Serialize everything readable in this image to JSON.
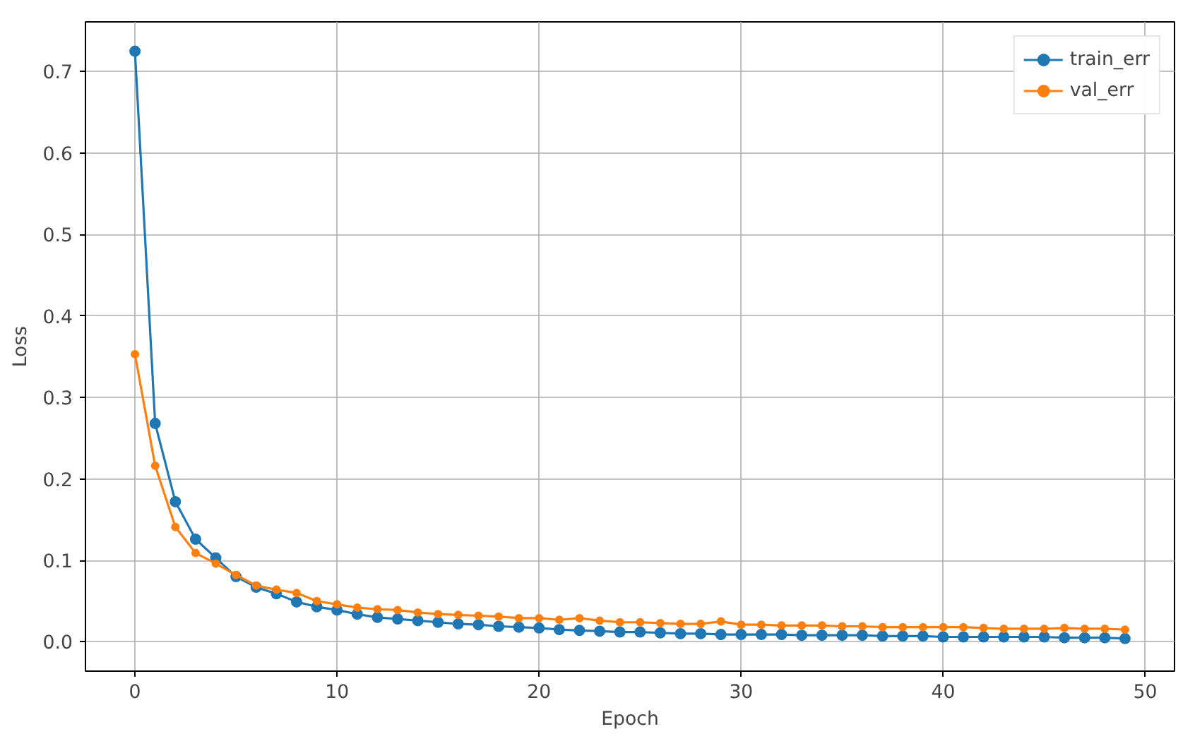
{
  "chart_data": {
    "type": "line",
    "xlabel": "Epoch",
    "ylabel": "Loss",
    "x": [
      0,
      1,
      2,
      3,
      4,
      5,
      6,
      7,
      8,
      9,
      10,
      11,
      12,
      13,
      14,
      15,
      16,
      17,
      18,
      19,
      20,
      21,
      22,
      23,
      24,
      25,
      26,
      27,
      28,
      29,
      30,
      31,
      32,
      33,
      34,
      35,
      36,
      37,
      38,
      39,
      40,
      41,
      42,
      43,
      44,
      45,
      46,
      47,
      48,
      49
    ],
    "series": [
      {
        "name": "train_err",
        "color": "#1f77b4",
        "values": [
          0.725,
          0.268,
          0.172,
          0.126,
          0.103,
          0.08,
          0.067,
          0.059,
          0.049,
          0.043,
          0.039,
          0.034,
          0.03,
          0.028,
          0.026,
          0.024,
          0.022,
          0.021,
          0.019,
          0.018,
          0.017,
          0.015,
          0.014,
          0.013,
          0.012,
          0.012,
          0.011,
          0.01,
          0.01,
          0.009,
          0.009,
          0.009,
          0.009,
          0.008,
          0.008,
          0.008,
          0.008,
          0.007,
          0.007,
          0.007,
          0.006,
          0.006,
          0.006,
          0.006,
          0.006,
          0.006,
          0.005,
          0.005,
          0.005,
          0.004
        ]
      },
      {
        "name": "val_err",
        "color": "#ff7f0e",
        "values": [
          0.353,
          0.216,
          0.141,
          0.109,
          0.096,
          0.082,
          0.069,
          0.064,
          0.06,
          0.05,
          0.046,
          0.042,
          0.04,
          0.039,
          0.036,
          0.034,
          0.033,
          0.032,
          0.031,
          0.029,
          0.029,
          0.027,
          0.029,
          0.026,
          0.024,
          0.024,
          0.023,
          0.022,
          0.022,
          0.025,
          0.021,
          0.021,
          0.02,
          0.02,
          0.02,
          0.019,
          0.019,
          0.018,
          0.018,
          0.018,
          0.018,
          0.018,
          0.017,
          0.016,
          0.016,
          0.016,
          0.017,
          0.016,
          0.016,
          0.015
        ]
      }
    ],
    "xlim": [
      -2.45,
      51.45
    ],
    "ylim": [
      -0.036,
      0.761
    ],
    "xticks": [
      0,
      10,
      20,
      30,
      40,
      50
    ],
    "yticks": [
      {
        "value": 0,
        "label": "0.0"
      },
      {
        "value": 0.1,
        "label": "0.1"
      },
      {
        "value": 0.2,
        "label": "0.2"
      },
      {
        "value": 0.3,
        "label": "0.3"
      },
      {
        "value": 0.4,
        "label": "0.4"
      },
      {
        "value": 0.5,
        "label": "0.5"
      },
      {
        "value": 0.6,
        "label": "0.6"
      },
      {
        "value": 0.7,
        "label": "0.7"
      }
    ],
    "grid": true,
    "legend": "top right",
    "marker": "circle",
    "line_style": "solid"
  }
}
